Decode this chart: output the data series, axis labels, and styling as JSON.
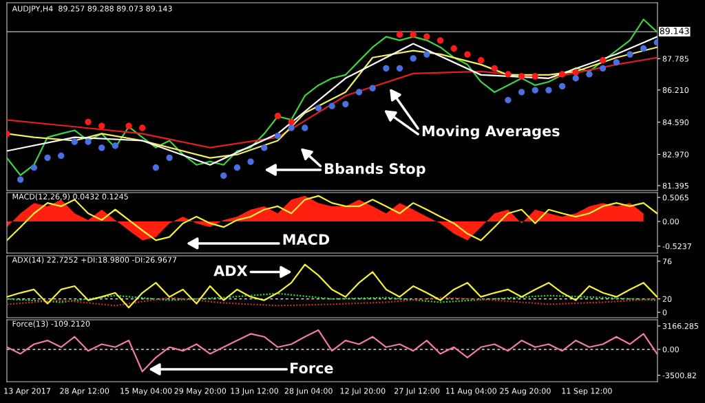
{
  "chart_data": [
    {
      "type": "line",
      "title": "AUDJPY,H4  89.257 89.288 89.073 89.143",
      "tick_labels": "y",
      "grid": false,
      "xlim": [
        "2017-04-07T12:00",
        "2017-09-30T15:00"
      ],
      "x": [
        "2017-04-07T12:00",
        "2017-04-11T04:00",
        "2017-04-14T20:00",
        "2017-04-18T12:00",
        "2017-04-22T04:00",
        "2017-04-25T20:00",
        "2017-04-29T12:00",
        "2017-05-03T04:00",
        "2017-05-06T20:00",
        "2017-05-10T12:00",
        "2017-05-14T04:00",
        "2017-05-17T20:00",
        "2017-05-21T12:00",
        "2017-05-25T04:00",
        "2017-05-28T20:00",
        "2017-06-01T12:00",
        "2017-06-05T04:00",
        "2017-06-08T20:00",
        "2017-06-12T12:00",
        "2017-06-16T04:00",
        "2017-06-19T20:00",
        "2017-06-23T12:00",
        "2017-06-27T04:00",
        "2017-06-30T20:00",
        "2017-07-04T12:00",
        "2017-07-08T04:00",
        "2017-07-11T20:00",
        "2017-07-15T12:00",
        "2017-07-19T04:00",
        "2017-07-22T20:00",
        "2017-07-26T12:00",
        "2017-07-30T04:00",
        "2017-08-02T20:00",
        "2017-08-06T12:00",
        "2017-08-10T04:00",
        "2017-08-13T20:00",
        "2017-08-17T12:00",
        "2017-08-21T04:00",
        "2017-08-24T20:00",
        "2017-08-28T12:00",
        "2017-09-01T04:00",
        "2017-09-04T20:00",
        "2017-09-08T12:00",
        "2017-09-12T04:00",
        "2017-09-15T20:00",
        "2017-09-19T12:00",
        "2017-09-23T04:00",
        "2017-09-26T20:00",
        "2017-09-30T12:00"
      ],
      "ylim": [
        81.15,
        90.6
      ],
      "yticks": [
        {
          "value": 81.395,
          "label": "81.395"
        },
        {
          "value": 82.97,
          "label": "82.970"
        },
        {
          "value": 84.59,
          "label": "84.590"
        },
        {
          "value": 86.21,
          "label": "86.210"
        },
        {
          "value": 87.785,
          "label": "87.785"
        }
      ],
      "ref_lines": [
        {
          "axis": "y",
          "value": 89.143,
          "label": "89.143",
          "color": "#c0c0c0"
        }
      ],
      "series": [
        {
          "color": "#3fd13f",
          "values": [
            82.79,
            81.92,
            82.44,
            83.83,
            84.01,
            84.18,
            83.66,
            84.01,
            83.31,
            84.36,
            83.83,
            83.31,
            83.66,
            82.96,
            82.44,
            82.61,
            82.44,
            83.14,
            83.31,
            84.01,
            84.88,
            84.71,
            85.92,
            86.45,
            86.8,
            86.97,
            87.67,
            88.36,
            88.89,
            88.71,
            88.89,
            88.71,
            88.36,
            87.84,
            87.49,
            86.62,
            86.1,
            86.45,
            86.8,
            86.45,
            86.62,
            86.97,
            87.32,
            87.14,
            87.67,
            88.19,
            88.71,
            89.76,
            89.13
          ]
        },
        {
          "color": "#e02020",
          "x": [
            "2017-04-07T12:00",
            "2017-04-25T20:00",
            "2017-05-14T04:00",
            "2017-06-01T12:00",
            "2017-06-19T20:00",
            "2017-07-08T04:00",
            "2017-07-26T12:00",
            "2017-08-13T20:00",
            "2017-09-01T04:00",
            "2017-09-19T12:00",
            "2017-09-30T12:00"
          ],
          "values": [
            84.7,
            84.36,
            84.01,
            83.31,
            83.83,
            85.92,
            87.04,
            87.14,
            86.8,
            87.49,
            87.84
          ]
        },
        {
          "color": "#f0f060",
          "x": [
            "2017-04-07T12:00",
            "2017-04-14T20:00",
            "2017-04-25T20:00",
            "2017-05-03T04:00",
            "2017-05-14T04:00",
            "2017-05-21T12:00",
            "2017-06-01T12:00",
            "2017-06-08T20:00",
            "2017-06-19T20:00",
            "2017-06-27T04:00",
            "2017-07-08T04:00",
            "2017-07-15T12:00",
            "2017-07-26T12:00",
            "2017-08-02T20:00",
            "2017-08-13T20:00",
            "2017-08-21T04:00",
            "2017-09-01T04:00",
            "2017-09-08T12:00",
            "2017-09-19T12:00",
            "2017-09-30T12:00"
          ],
          "values": [
            84.01,
            83.83,
            83.66,
            84.01,
            83.66,
            83.31,
            82.79,
            82.96,
            83.66,
            85.05,
            86.1,
            87.84,
            88.19,
            88.01,
            87.49,
            86.97,
            86.97,
            87.14,
            87.84,
            88.36
          ]
        },
        {
          "color": "#ffffff",
          "x": [
            "2017-04-07T12:00",
            "2017-04-25T20:00",
            "2017-05-14T04:00",
            "2017-06-01T12:00",
            "2017-06-19T20:00",
            "2017-07-08T04:00",
            "2017-07-26T12:00",
            "2017-08-13T20:00",
            "2017-09-01T04:00",
            "2017-09-19T12:00",
            "2017-09-30T12:00"
          ],
          "values": [
            83.14,
            83.83,
            83.66,
            82.44,
            84.01,
            86.8,
            88.54,
            86.97,
            86.8,
            88.01,
            88.89
          ]
        },
        {
          "type": "scatter",
          "marker": "circle",
          "color": "#4a6fe0",
          "x": [
            "2017-04-11T04:00",
            "2017-04-14T20:00",
            "2017-04-18T12:00",
            "2017-04-22T04:00",
            "2017-04-25T20:00",
            "2017-04-29T12:00",
            "2017-05-03T04:00",
            "2017-05-06T20:00",
            "2017-05-17T20:00",
            "2017-05-21T12:00",
            "2017-06-05T04:00",
            "2017-06-08T20:00",
            "2017-06-12T12:00",
            "2017-06-16T04:00",
            "2017-06-19T20:00",
            "2017-06-23T12:00",
            "2017-06-27T04:00",
            "2017-06-30T20:00",
            "2017-07-04T12:00",
            "2017-07-08T04:00",
            "2017-07-11T20:00",
            "2017-07-15T12:00",
            "2017-07-19T04:00",
            "2017-07-22T20:00",
            "2017-07-26T12:00",
            "2017-07-30T04:00",
            "2017-08-21T04:00",
            "2017-08-24T20:00",
            "2017-08-28T12:00",
            "2017-09-01T04:00",
            "2017-09-04T20:00",
            "2017-09-08T12:00",
            "2017-09-12T04:00",
            "2017-09-15T20:00",
            "2017-09-19T12:00",
            "2017-09-23T04:00",
            "2017-09-26T20:00",
            "2017-09-30T12:00"
          ],
          "values": [
            81.7,
            82.3,
            82.8,
            82.9,
            83.6,
            83.6,
            83.3,
            83.4,
            82.3,
            82.8,
            81.9,
            82.3,
            82.6,
            83.3,
            83.9,
            84.3,
            84.3,
            85.3,
            85.4,
            85.5,
            86.1,
            86.3,
            87.3,
            87.3,
            87.8,
            88.0,
            85.7,
            86.1,
            86.2,
            86.2,
            86.4,
            86.8,
            87.0,
            87.3,
            87.6,
            88.0,
            88.3,
            88.6
          ]
        },
        {
          "type": "scatter",
          "marker": "circle",
          "color": "#ff1a1a",
          "x": [
            "2017-04-07T12:00",
            "2017-04-29T12:00",
            "2017-05-03T04:00",
            "2017-05-10T12:00",
            "2017-05-14T04:00",
            "2017-06-19T20:00",
            "2017-06-23T12:00",
            "2017-07-22T20:00",
            "2017-07-26T12:00",
            "2017-07-30T04:00",
            "2017-08-02T20:00",
            "2017-08-06T12:00",
            "2017-08-10T04:00",
            "2017-08-13T20:00",
            "2017-08-17T12:00",
            "2017-08-21T04:00",
            "2017-08-24T20:00",
            "2017-08-28T12:00",
            "2017-09-04T20:00",
            "2017-09-08T12:00",
            "2017-09-15T20:00"
          ],
          "values": [
            84.0,
            84.6,
            84.4,
            84.4,
            84.3,
            84.9,
            84.6,
            89.0,
            89.0,
            88.9,
            88.7,
            88.3,
            88.0,
            87.7,
            87.3,
            87.0,
            86.9,
            86.9,
            87.0,
            87.1,
            87.7
          ]
        }
      ],
      "annotations": [
        "Moving Averages",
        "Bbands Stop"
      ]
    },
    {
      "type": "line",
      "title": "MACD(12,26,9) 0.0432 0.1245",
      "tick_labels": "y",
      "grid": false,
      "xlim": [
        "2017-04-07T12:00",
        "2017-09-30T15:00"
      ],
      "x": [
        "2017-04-07T12:00",
        "2017-04-11T04:00",
        "2017-04-14T20:00",
        "2017-04-18T12:00",
        "2017-04-22T04:00",
        "2017-04-25T20:00",
        "2017-04-29T12:00",
        "2017-05-03T04:00",
        "2017-05-06T20:00",
        "2017-05-10T12:00",
        "2017-05-14T04:00",
        "2017-05-17T20:00",
        "2017-05-21T12:00",
        "2017-05-25T04:00",
        "2017-05-28T20:00",
        "2017-06-01T12:00",
        "2017-06-05T04:00",
        "2017-06-08T20:00",
        "2017-06-12T12:00",
        "2017-06-16T04:00",
        "2017-06-19T20:00",
        "2017-06-23T12:00",
        "2017-06-27T04:00",
        "2017-06-30T20:00",
        "2017-07-04T12:00",
        "2017-07-08T04:00",
        "2017-07-11T20:00",
        "2017-07-15T12:00",
        "2017-07-19T04:00",
        "2017-07-22T20:00",
        "2017-07-26T12:00",
        "2017-07-30T04:00",
        "2017-08-02T20:00",
        "2017-08-06T12:00",
        "2017-08-10T04:00",
        "2017-08-13T20:00",
        "2017-08-17T12:00",
        "2017-08-21T04:00",
        "2017-08-24T20:00",
        "2017-08-28T12:00",
        "2017-09-01T04:00",
        "2017-09-04T20:00",
        "2017-09-08T12:00",
        "2017-09-12T04:00",
        "2017-09-15T20:00",
        "2017-09-19T12:00",
        "2017-09-23T04:00",
        "2017-09-26T20:00",
        "2017-09-30T12:00"
      ],
      "ylim": [
        -0.67,
        0.61
      ],
      "yticks": [
        {
          "value": 0.5065,
          "label": "0.5065"
        },
        {
          "value": 0,
          "label": "0.00"
        },
        {
          "value": -0.5237,
          "label": "-0.5237"
        }
      ],
      "series": [
        {
          "type": "area",
          "color": "#ff2010",
          "values": [
            -0.12,
            0.17,
            0.39,
            0.32,
            0.46,
            0.17,
            0.03,
            0.25,
            0.03,
            -0.19,
            -0.4,
            -0.33,
            -0.04,
            0.1,
            -0.04,
            -0.12,
            0.03,
            0.1,
            0.25,
            0.32,
            0.17,
            0.46,
            0.54,
            0.39,
            0.32,
            0.32,
            0.46,
            0.32,
            0.17,
            0.39,
            0.25,
            0.1,
            -0.04,
            -0.26,
            -0.4,
            -0.12,
            0.17,
            0.25,
            -0.04,
            0.25,
            0.17,
            0.1,
            0.17,
            0.32,
            0.39,
            0.32,
            0.39,
            0.17,
            null
          ]
        },
        {
          "color": "#f5f03c",
          "values": [
            -0.4,
            -0.12,
            0.17,
            0.39,
            0.32,
            0.46,
            0.17,
            0.03,
            0.25,
            0.03,
            -0.19,
            -0.4,
            -0.33,
            -0.04,
            0.1,
            -0.04,
            -0.12,
            0.03,
            0.1,
            0.25,
            0.32,
            0.17,
            0.46,
            0.54,
            0.39,
            0.32,
            0.32,
            0.46,
            0.32,
            0.17,
            0.39,
            0.25,
            0.1,
            -0.04,
            -0.26,
            -0.4,
            -0.12,
            0.17,
            0.25,
            -0.04,
            0.25,
            0.17,
            0.1,
            0.17,
            0.32,
            0.39,
            0.32,
            0.39,
            0.17
          ]
        }
      ],
      "annotations": [
        "MACD"
      ]
    },
    {
      "type": "line",
      "title": "ADX(14) 22.7252 +DI:18.9800 -DI:26.9677",
      "tick_labels": "y",
      "grid": false,
      "xlim": [
        "2017-04-07T12:00",
        "2017-09-30T15:00"
      ],
      "x": [
        "2017-04-07T12:00",
        "2017-04-11T04:00",
        "2017-04-14T20:00",
        "2017-04-18T12:00",
        "2017-04-22T04:00",
        "2017-04-25T20:00",
        "2017-04-29T12:00",
        "2017-05-03T04:00",
        "2017-05-06T20:00",
        "2017-05-10T12:00",
        "2017-05-14T04:00",
        "2017-05-17T20:00",
        "2017-05-21T12:00",
        "2017-05-25T04:00",
        "2017-05-28T20:00",
        "2017-06-01T12:00",
        "2017-06-05T04:00",
        "2017-06-08T20:00",
        "2017-06-12T12:00",
        "2017-06-16T04:00",
        "2017-06-19T20:00",
        "2017-06-23T12:00",
        "2017-06-27T04:00",
        "2017-06-30T20:00",
        "2017-07-04T12:00",
        "2017-07-08T04:00",
        "2017-07-11T20:00",
        "2017-07-15T12:00",
        "2017-07-19T04:00",
        "2017-07-22T20:00",
        "2017-07-26T12:00",
        "2017-07-30T04:00",
        "2017-08-02T20:00",
        "2017-08-06T12:00",
        "2017-08-10T04:00",
        "2017-08-13T20:00",
        "2017-08-17T12:00",
        "2017-08-21T04:00",
        "2017-08-24T20:00",
        "2017-08-28T12:00",
        "2017-09-01T04:00",
        "2017-09-04T20:00",
        "2017-09-08T12:00",
        "2017-09-12T04:00",
        "2017-09-15T20:00",
        "2017-09-19T12:00",
        "2017-09-23T04:00",
        "2017-09-26T20:00",
        "2017-09-30T12:00"
      ],
      "ylim": [
        -8,
        84
      ],
      "yticks": [
        76,
        20,
        0
      ],
      "ref_lines": [
        {
          "axis": "y",
          "value": 20,
          "color": "#ffffff",
          "line_style": "dashed"
        }
      ],
      "series": [
        {
          "color": "#30d030",
          "line_style": "dotted",
          "x": [
            "2017-04-07T12:00",
            "2017-04-22T04:00",
            "2017-05-06T20:00",
            "2017-05-21T12:00",
            "2017-06-05T04:00",
            "2017-06-19T20:00",
            "2017-07-04T12:00",
            "2017-07-19T04:00",
            "2017-08-02T20:00",
            "2017-08-17T12:00",
            "2017-09-01T04:00",
            "2017-09-15T20:00",
            "2017-09-30T12:00"
          ],
          "values": [
            20,
            15,
            25,
            18,
            22,
            28,
            20,
            22,
            15,
            20,
            25,
            22,
            18
          ]
        },
        {
          "color": "#c03020",
          "line_style": "dotted",
          "x": [
            "2017-04-07T12:00",
            "2017-04-22T04:00",
            "2017-05-06T20:00",
            "2017-05-21T12:00",
            "2017-06-05T04:00",
            "2017-06-19T20:00",
            "2017-07-04T12:00",
            "2017-07-19T04:00",
            "2017-08-02T20:00",
            "2017-08-17T12:00",
            "2017-09-01T04:00",
            "2017-09-15T20:00",
            "2017-09-30T12:00"
          ],
          "values": [
            12,
            18,
            10,
            22,
            14,
            10,
            12,
            15,
            22,
            18,
            12,
            15,
            20
          ]
        },
        {
          "color": "#f5f03c",
          "values": [
            23,
            29,
            34,
            13,
            34,
            39,
            18,
            23,
            29,
            7,
            29,
            44,
            23,
            34,
            13,
            39,
            18,
            34,
            23,
            18,
            29,
            44,
            71,
            55,
            34,
            23,
            44,
            60,
            34,
            23,
            39,
            29,
            18,
            34,
            44,
            23,
            29,
            34,
            23,
            34,
            44,
            29,
            18,
            39,
            29,
            23,
            34,
            44,
            23
          ]
        }
      ],
      "annotations": [
        "ADX"
      ]
    },
    {
      "type": "line",
      "title": "Force(13) -109.2120",
      "grid": false,
      "xlim": [
        "2017-04-07T12:00",
        "2017-09-30T15:00"
      ],
      "xticks": [
        {
          "value": "2017-04-13",
          "label": "13 Apr 2017"
        },
        {
          "value": "2017-04-28T12:00",
          "label": "28 Apr 12:00"
        },
        {
          "value": "2017-05-15T04:00",
          "label": "15 May 04:00"
        },
        {
          "value": "2017-05-29T20:00",
          "label": "29 May 20:00"
        },
        {
          "value": "2017-06-13T12:00",
          "label": "13 Jun 12:00"
        },
        {
          "value": "2017-06-28T04:00",
          "label": "28 Jun 04:00"
        },
        {
          "value": "2017-07-12T20:00",
          "label": "12 Jul 20:00"
        },
        {
          "value": "2017-07-27T12:00",
          "label": "27 Jul 12:00"
        },
        {
          "value": "2017-08-11T04:00",
          "label": "11 Aug 04:00"
        },
        {
          "value": "2017-08-25T20:00",
          "label": "25 Aug 20:00"
        },
        {
          "value": "2017-09-11T12:00",
          "label": "11 Sep 12:00"
        }
      ],
      "x": [
        "2017-04-07T12:00",
        "2017-04-11T04:00",
        "2017-04-14T20:00",
        "2017-04-18T12:00",
        "2017-04-22T04:00",
        "2017-04-25T20:00",
        "2017-04-29T12:00",
        "2017-05-03T04:00",
        "2017-05-06T20:00",
        "2017-05-10T12:00",
        "2017-05-14T04:00",
        "2017-05-17T20:00",
        "2017-05-21T12:00",
        "2017-05-25T04:00",
        "2017-05-28T20:00",
        "2017-06-01T12:00",
        "2017-06-05T04:00",
        "2017-06-08T20:00",
        "2017-06-12T12:00",
        "2017-06-16T04:00",
        "2017-06-19T20:00",
        "2017-06-23T12:00",
        "2017-06-27T04:00",
        "2017-06-30T20:00",
        "2017-07-04T12:00",
        "2017-07-08T04:00",
        "2017-07-11T20:00",
        "2017-07-15T12:00",
        "2017-07-19T04:00",
        "2017-07-22T20:00",
        "2017-07-26T12:00",
        "2017-07-30T04:00",
        "2017-08-02T20:00",
        "2017-08-06T12:00",
        "2017-08-10T04:00",
        "2017-08-13T20:00",
        "2017-08-17T12:00",
        "2017-08-21T04:00",
        "2017-08-24T20:00",
        "2017-08-28T12:00",
        "2017-09-01T04:00",
        "2017-09-04T20:00",
        "2017-09-08T12:00",
        "2017-09-12T04:00",
        "2017-09-15T20:00",
        "2017-09-19T12:00",
        "2017-09-23T04:00",
        "2017-09-26T20:00",
        "2017-09-30T12:00"
      ],
      "ylim": [
        -4370,
        4000
      ],
      "yticks": [
        {
          "value": 3166.285,
          "label": "3166.285"
        },
        {
          "value": 0,
          "label": "0.00"
        },
        {
          "value": -3500.82,
          "label": "-3500.82"
        }
      ],
      "ref_lines": [
        {
          "axis": "y",
          "value": 0,
          "color": "#ffffff",
          "line_style": "dashed"
        }
      ],
      "series": [
        {
          "color": "#f07aa8",
          "values": [
            300,
            -600,
            700,
            1200,
            300,
            1700,
            -200,
            700,
            300,
            1200,
            -3000,
            -1100,
            300,
            -200,
            700,
            -600,
            300,
            1200,
            2100,
            1700,
            300,
            700,
            1700,
            2600,
            -200,
            1200,
            700,
            1700,
            300,
            700,
            -200,
            1200,
            -600,
            300,
            -1100,
            300,
            700,
            -200,
            1200,
            300,
            700,
            -200,
            1200,
            300,
            700,
            1700,
            700,
            2100,
            -600
          ]
        }
      ],
      "annotations": [
        "Force"
      ]
    }
  ]
}
